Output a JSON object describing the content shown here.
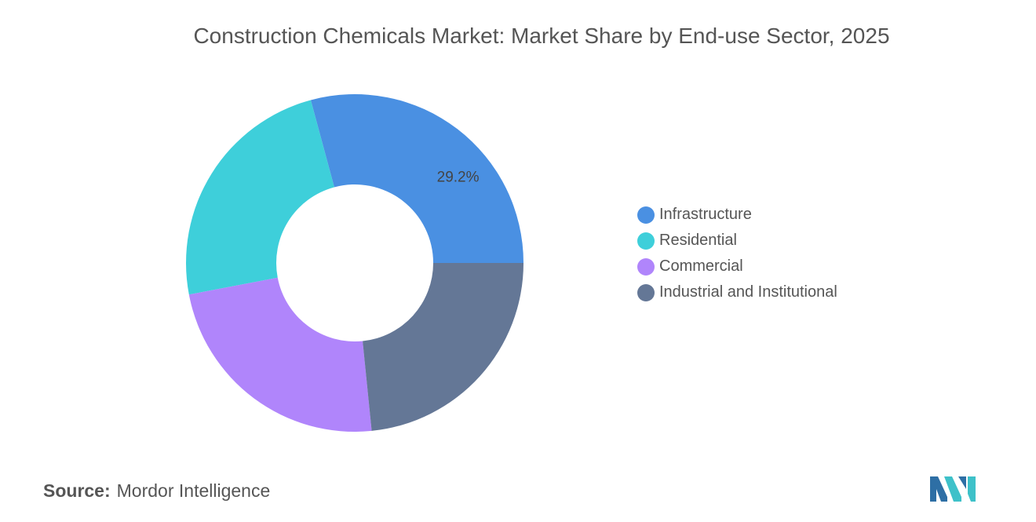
{
  "chart_data": {
    "type": "pie",
    "title": "Construction Chemicals Market: Market Share by End-use Sector, 2025",
    "categories": [
      "Infrastructure",
      "Residential",
      "Commercial",
      "Industrial and Institutional"
    ],
    "values": [
      29.2,
      23.8,
      23.6,
      23.4
    ],
    "colors": [
      "#4A90E2",
      "#3ECFDA",
      "#B085FB",
      "#647796"
    ],
    "data_labels": [
      "29.2%",
      "",
      "",
      ""
    ],
    "donut": true,
    "legend_position": "right"
  },
  "source": {
    "label": "Source:",
    "text": "Mordor Intelligence"
  }
}
